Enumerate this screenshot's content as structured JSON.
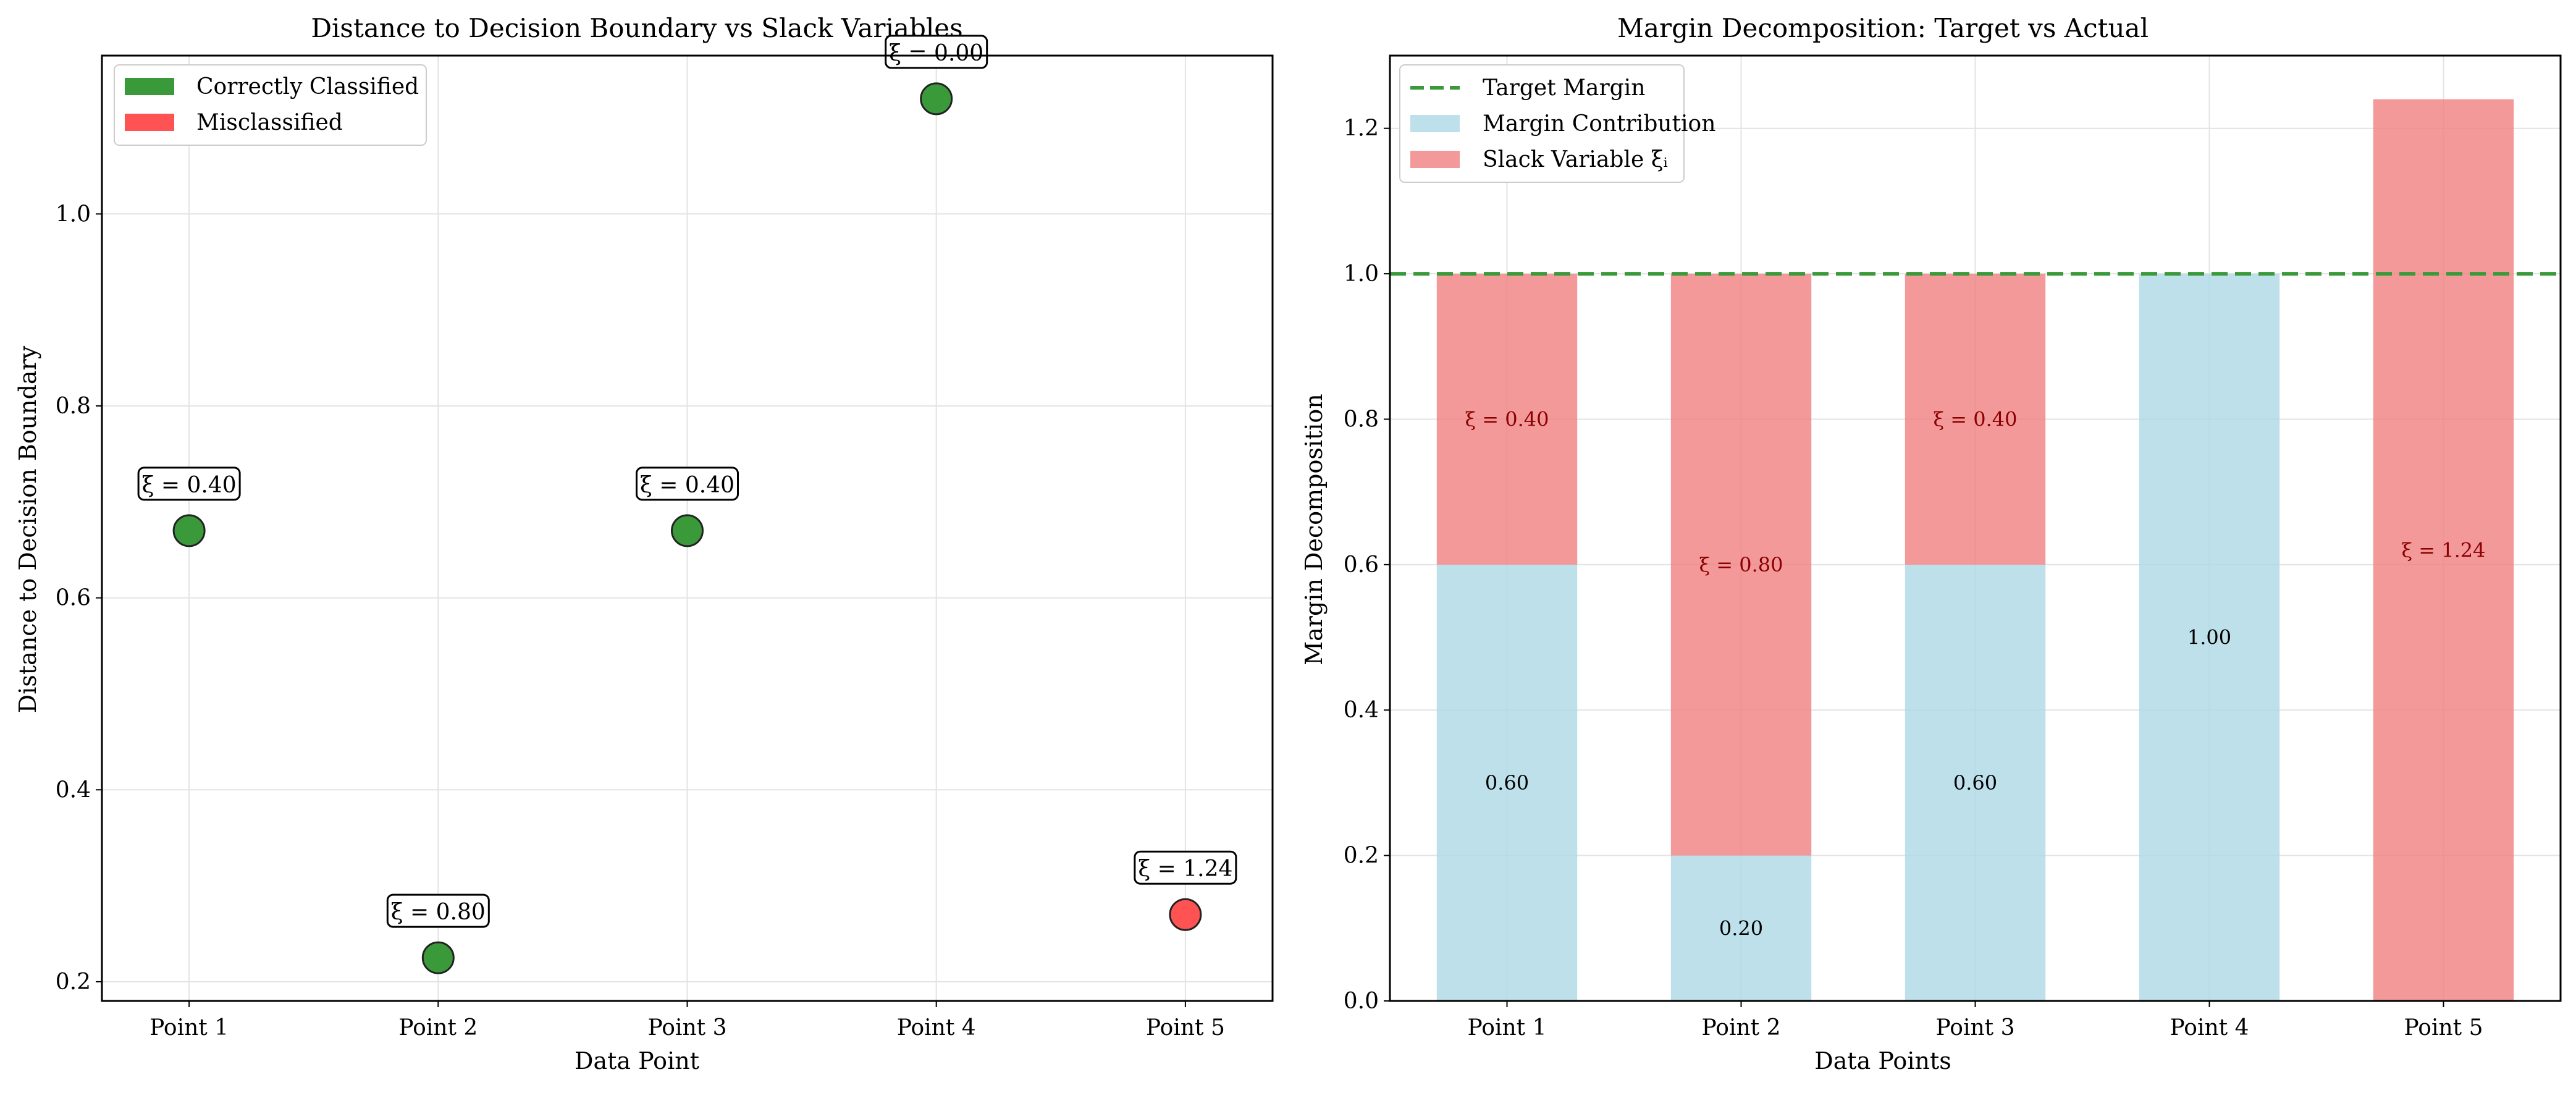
{
  "chart_data": [
    {
      "type": "scatter",
      "title": "Distance to Decision Boundary vs Slack Variables",
      "xlabel": "Data Point",
      "ylabel": "Distance to Decision Boundary",
      "categories": [
        "Point 1",
        "Point 2",
        "Point 3",
        "Point 4",
        "Point 5"
      ],
      "ylim": [
        0.18,
        1.165
      ],
      "yticks": [
        "0.2",
        "0.4",
        "0.6",
        "0.8",
        "1.0"
      ],
      "grid": true,
      "legend_position": "upper-left",
      "legend": [
        {
          "label": "Correctly Classified",
          "color": "#3a9a3a"
        },
        {
          "label": "Misclassified",
          "color": "#ff5252"
        }
      ],
      "points": [
        {
          "category": "Point 1",
          "y": 0.67,
          "class": "correct",
          "annotation": "ξ = 0.40"
        },
        {
          "category": "Point 2",
          "y": 0.225,
          "class": "correct",
          "annotation": "ξ = 0.80"
        },
        {
          "category": "Point 3",
          "y": 0.67,
          "class": "correct",
          "annotation": "ξ = 0.40"
        },
        {
          "category": "Point 4",
          "y": 1.12,
          "class": "correct",
          "annotation": "ξ = 0.00"
        },
        {
          "category": "Point 5",
          "y": 0.27,
          "class": "misclassified",
          "annotation": "ξ = 1.24"
        }
      ]
    },
    {
      "type": "bar",
      "stacked": true,
      "title": "Margin Decomposition: Target vs Actual",
      "xlabel": "Data Points",
      "ylabel": "Margin Decomposition",
      "categories": [
        "Point 1",
        "Point 2",
        "Point 3",
        "Point 4",
        "Point 5"
      ],
      "ylim": [
        0,
        1.3
      ],
      "yticks": [
        "0.0",
        "0.2",
        "0.4",
        "0.6",
        "0.8",
        "1.0",
        "1.2"
      ],
      "grid": true,
      "legend_position": "upper-left",
      "target_margin": 1.0,
      "series": [
        {
          "name": "Margin Contribution",
          "color": "#add8e6",
          "values": [
            0.6,
            0.2,
            0.6,
            1.0,
            0.0
          ],
          "labels": [
            "0.60",
            "0.20",
            "0.60",
            "1.00",
            ""
          ]
        },
        {
          "name": "Slack Variable ξᵢ",
          "color": "#f08080",
          "values": [
            0.4,
            0.8,
            0.4,
            0.0,
            1.24
          ],
          "labels": [
            "ξ = 0.40",
            "ξ = 0.80",
            "ξ = 0.40",
            "",
            "ξ = 1.24"
          ]
        }
      ],
      "legend": [
        {
          "label": "Target Margin",
          "color": "#3a9a3a",
          "style": "dashed-line"
        },
        {
          "label": "Margin Contribution",
          "color": "#add8e6",
          "style": "patch"
        },
        {
          "label": "Slack Variable ξᵢ",
          "color": "#f08080",
          "style": "patch"
        }
      ]
    }
  ]
}
